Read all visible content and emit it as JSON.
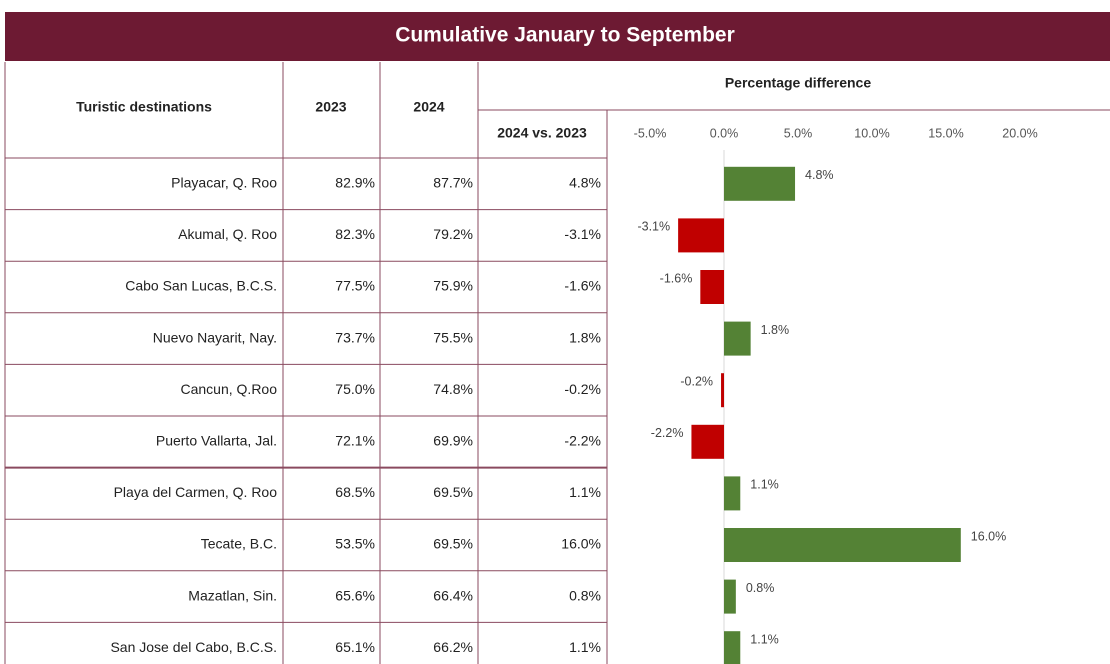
{
  "title": "Cumulative January to September",
  "table": {
    "headers": [
      "Turistic destinations",
      "2023",
      "2024",
      "2024 vs. 2023"
    ],
    "rows": [
      [
        "Playacar, Q. Roo",
        "82.9%",
        "87.7%"
      ],
      [
        "Akumal, Q. Roo",
        "82.3%",
        "79.2%"
      ],
      [
        "Cabo San Lucas, B.C.S.",
        "77.5%",
        "75.9%"
      ],
      [
        "Nuevo Nayarit, Nay.",
        "73.7%",
        "75.5%"
      ],
      [
        "Cancun, Q.Roo",
        "75.0%",
        "74.8%"
      ],
      [
        "Puerto Vallarta, Jal.",
        "72.1%",
        "69.9%"
      ],
      [
        "Playa del Carmen, Q. Roo",
        "68.5%",
        "69.5%"
      ],
      [
        "Tecate, B.C.",
        "53.5%",
        "69.5%"
      ],
      [
        "Mazatlan, Sin.",
        "65.6%",
        "66.4%"
      ],
      [
        "San Jose del Cabo, B.C.S.",
        "65.1%",
        "66.2%"
      ]
    ]
  },
  "chart_data": {
    "type": "bar",
    "orientation": "horizontal",
    "title": "Percentage difference",
    "values": [
      4.8,
      -3.1,
      -1.6,
      1.8,
      -0.2,
      -2.2,
      1.1,
      16.0,
      0.8,
      1.1
    ],
    "value_labels": [
      "4.8%",
      "-3.1%",
      "-1.6%",
      "1.8%",
      "-0.2%",
      "-2.2%",
      "1.1%",
      "16.0%",
      "0.8%",
      "1.1%"
    ],
    "positive_color": "#548235",
    "negative_color": "#c00000",
    "xlim": [
      -5,
      20
    ],
    "xticks": [
      {
        "value": -5,
        "label": "-5.0%"
      },
      {
        "value": 0,
        "label": "0.0%"
      },
      {
        "value": 5,
        "label": "5.0%"
      },
      {
        "value": 10,
        "label": "10.0%"
      },
      {
        "value": 15,
        "label": "15.0%"
      },
      {
        "value": 20,
        "label": "20.0%"
      }
    ]
  }
}
